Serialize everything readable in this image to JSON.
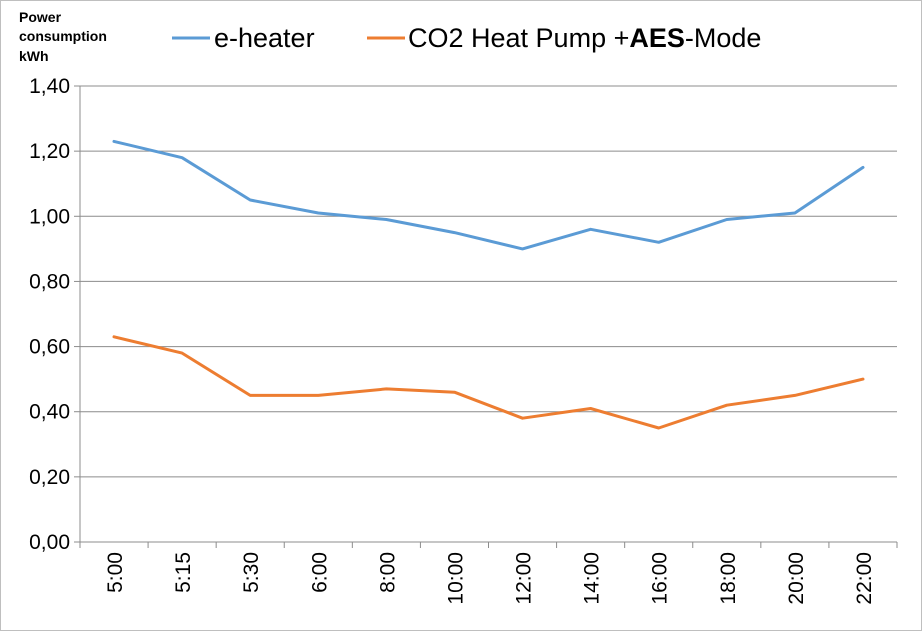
{
  "chart_data": {
    "type": "line",
    "ylabel_lines": [
      "Power",
      "consumption",
      "kWh"
    ],
    "categories": [
      "5:00",
      "5:15",
      "5:30",
      "6:00",
      "8:00",
      "10:00",
      "12:00",
      "14:00",
      "16:00",
      "18:00",
      "20:00",
      "22:00"
    ],
    "yticks": [
      "0,00",
      "0,20",
      "0,40",
      "0,60",
      "0,80",
      "1,00",
      "1,20",
      "1,40"
    ],
    "ylim": [
      0,
      1.4
    ],
    "grid": true,
    "legend_position": "top",
    "series": [
      {
        "name": "e-heater",
        "color": "#5b9bd5",
        "values": [
          1.23,
          1.18,
          1.05,
          1.01,
          0.99,
          0.95,
          0.9,
          0.96,
          0.92,
          0.99,
          1.01,
          1.15
        ]
      },
      {
        "name": "CO2 Heat Pump +AES-Mode",
        "name_parts": [
          "CO2 Heat Pump +",
          "AES",
          "-Mode"
        ],
        "color": "#ed7d31",
        "values": [
          0.63,
          0.58,
          0.45,
          0.45,
          0.47,
          0.46,
          0.38,
          0.41,
          0.35,
          0.42,
          0.45,
          0.5
        ]
      }
    ]
  }
}
